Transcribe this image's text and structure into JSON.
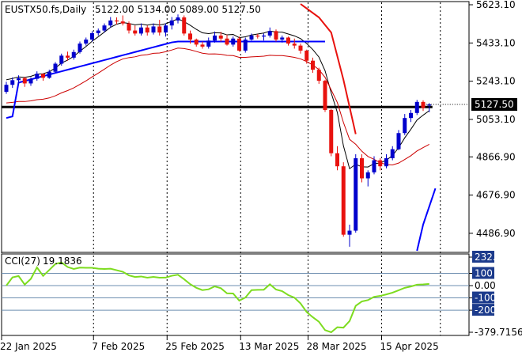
{
  "header": {
    "title": "EUSTX50.fs,Daily",
    "ohlc": "5122.00 5134.00 5089.00 5127.50"
  },
  "chart_data": [
    {
      "type": "candlestick",
      "title": "EUSTX50.fs,Daily",
      "x": [
        "22 Jan 2025",
        "7 Feb 2025",
        "25 Feb 2025",
        "13 Mar 2025",
        "28 Mar 2025",
        "15 Apr 2025"
      ],
      "y_ticks": [
        "5623.10",
        "5433.10",
        "5243.10",
        "5053.10",
        "4866.90",
        "4676.90",
        "4486.90"
      ],
      "ylim": [
        4400,
        5627
      ],
      "current_price": "5127.50",
      "horizontal_line": 5115,
      "candles": [
        [
          5190,
          5240,
          5180,
          5225
        ],
        [
          5225,
          5262,
          5210,
          5248
        ],
        [
          5248,
          5272,
          5225,
          5258
        ],
        [
          5258,
          5265,
          5215,
          5232
        ],
        [
          5232,
          5262,
          5220,
          5255
        ],
        [
          5255,
          5292,
          5245,
          5280
        ],
        [
          5280,
          5282,
          5245,
          5260
        ],
        [
          5260,
          5300,
          5255,
          5290
        ],
        [
          5290,
          5338,
          5285,
          5330
        ],
        [
          5330,
          5380,
          5320,
          5370
        ],
        [
          5370,
          5390,
          5345,
          5360
        ],
        [
          5360,
          5400,
          5350,
          5388
        ],
        [
          5388,
          5440,
          5380,
          5430
        ],
        [
          5430,
          5460,
          5420,
          5450
        ],
        [
          5450,
          5492,
          5440,
          5482
        ],
        [
          5482,
          5505,
          5470,
          5495
        ],
        [
          5495,
          5530,
          5485,
          5520
        ],
        [
          5520,
          5562,
          5510,
          5545
        ],
        [
          5545,
          5560,
          5525,
          5540
        ],
        [
          5540,
          5570,
          5520,
          5530
        ],
        [
          5530,
          5540,
          5480,
          5495
        ],
        [
          5495,
          5520,
          5470,
          5480
        ],
        [
          5480,
          5530,
          5470,
          5510
        ],
        [
          5510,
          5520,
          5470,
          5485
        ],
        [
          5485,
          5530,
          5475,
          5515
        ],
        [
          5515,
          5548,
          5470,
          5485
        ],
        [
          5485,
          5530,
          5465,
          5520
        ],
        [
          5520,
          5562,
          5500,
          5545
        ],
        [
          5545,
          5575,
          5530,
          5560
        ],
        [
          5560,
          5570,
          5470,
          5480
        ],
        [
          5480,
          5495,
          5430,
          5450
        ],
        [
          5450,
          5455,
          5415,
          5425
        ],
        [
          5425,
          5440,
          5405,
          5415
        ],
        [
          5415,
          5460,
          5405,
          5445
        ],
        [
          5445,
          5490,
          5435,
          5470
        ],
        [
          5470,
          5488,
          5440,
          5455
        ],
        [
          5455,
          5475,
          5420,
          5425
        ],
        [
          5425,
          5465,
          5415,
          5455
        ],
        [
          5455,
          5465,
          5390,
          5395
        ],
        [
          5395,
          5460,
          5385,
          5450
        ],
        [
          5450,
          5480,
          5445,
          5470
        ],
        [
          5470,
          5478,
          5455,
          5465
        ],
        [
          5465,
          5480,
          5445,
          5470
        ],
        [
          5470,
          5510,
          5460,
          5492
        ],
        [
          5492,
          5500,
          5440,
          5450
        ],
        [
          5450,
          5470,
          5435,
          5460
        ],
        [
          5460,
          5465,
          5420,
          5430
        ],
        [
          5430,
          5455,
          5405,
          5420
        ],
        [
          5420,
          5430,
          5380,
          5395
        ],
        [
          5395,
          5400,
          5330,
          5345
        ],
        [
          5345,
          5360,
          5285,
          5300
        ],
        [
          5300,
          5310,
          5230,
          5245
        ],
        [
          5245,
          5250,
          5090,
          5100
        ],
        [
          5100,
          5105,
          4870,
          4885
        ],
        [
          4885,
          4920,
          4800,
          4820
        ],
        [
          4820,
          4840,
          4470,
          4480
        ],
        [
          4480,
          4530,
          4420,
          4500
        ],
        [
          4500,
          4880,
          4490,
          4860
        ],
        [
          4860,
          4880,
          4740,
          4760
        ],
        [
          4760,
          4800,
          4720,
          4790
        ],
        [
          4790,
          4870,
          4780,
          4850
        ],
        [
          4850,
          4860,
          4800,
          4820
        ],
        [
          4820,
          4880,
          4810,
          4860
        ],
        [
          4860,
          4920,
          4850,
          4905
        ],
        [
          4905,
          5000,
          4900,
          4985
        ],
        [
          4985,
          5080,
          4975,
          5060
        ],
        [
          5060,
          5100,
          5040,
          5085
        ],
        [
          5085,
          5150,
          5075,
          5140
        ],
        [
          5140,
          5148,
          5095,
          5110
        ],
        [
          5122,
          5134,
          5089,
          5127.5
        ]
      ],
      "cci": {
        "name": "CCI(27)",
        "value": "19.1836",
        "ylim": [
          -379.7156,
          232.0291
        ],
        "levels": [
          232.0291,
          100,
          0,
          -100,
          -200,
          -379.7156
        ],
        "level_labels": [
          "232.0291",
          "100",
          "0.00",
          "-100",
          "-200",
          "-379.7156"
        ],
        "highlighted_labels": [
          "232.0291",
          "100",
          "-100",
          "-200"
        ]
      }
    }
  ],
  "colors": {
    "bull": "#0000cc",
    "bear": "#e8120e",
    "ma_fast": "#000000",
    "ma_slow": "#cc0000",
    "band": "#0000ff",
    "cci_line": "#7ddc1f",
    "label_bg": "#1c3b8c",
    "price_label_bg": "#000000",
    "grid": "#000000"
  }
}
